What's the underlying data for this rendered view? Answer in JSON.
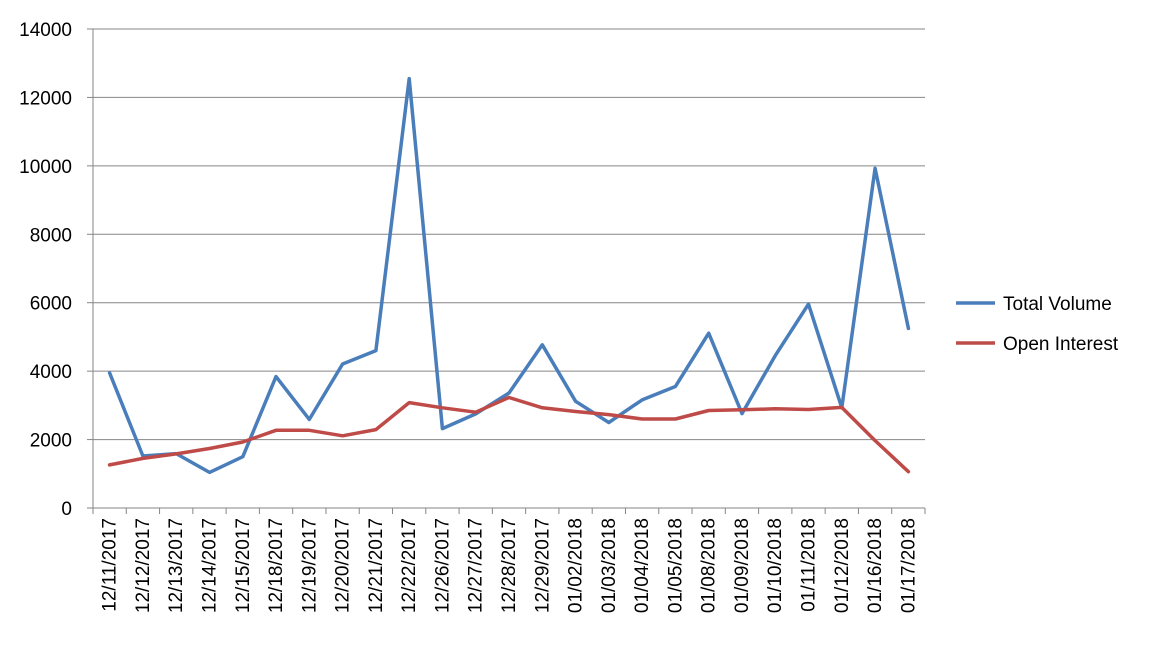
{
  "chart_data": {
    "type": "line",
    "title": "",
    "xlabel": "",
    "ylabel": "",
    "ylim": [
      0,
      14000
    ],
    "yticks": [
      0,
      2000,
      4000,
      6000,
      8000,
      10000,
      12000,
      14000
    ],
    "grid": true,
    "legend_position": "right",
    "categories": [
      "12/11/2017",
      "12/12/2017",
      "12/13/2017",
      "12/14/2017",
      "12/15/2017",
      "12/18/2017",
      "12/19/2017",
      "12/20/2017",
      "12/21/2017",
      "12/22/2017",
      "12/26/2017",
      "12/27/2017",
      "12/28/2017",
      "12/29/2017",
      "01/02/2018",
      "01/03/2018",
      "01/04/2018",
      "01/05/2018",
      "01/08/2018",
      "01/09/2018",
      "01/10/2018",
      "01/11/2018",
      "01/12/2018",
      "01/16/2018",
      "01/17/2018"
    ],
    "series": [
      {
        "name": "Total Volume",
        "color": "#4a7ebb",
        "values": [
          3950,
          1520,
          1590,
          1040,
          1500,
          3840,
          2590,
          4210,
          4600,
          12550,
          2320,
          2750,
          3360,
          4770,
          3120,
          2500,
          3160,
          3550,
          5110,
          2760,
          4450,
          5960,
          2930,
          9930,
          5250
        ]
      },
      {
        "name": "Open Interest",
        "color": "#be4b48",
        "values": [
          1260,
          1450,
          1580,
          1740,
          1930,
          2270,
          2270,
          2110,
          2290,
          3080,
          2930,
          2800,
          3230,
          2930,
          2820,
          2730,
          2600,
          2600,
          2850,
          2870,
          2900,
          2880,
          2940,
          1970,
          1060
        ]
      }
    ]
  }
}
